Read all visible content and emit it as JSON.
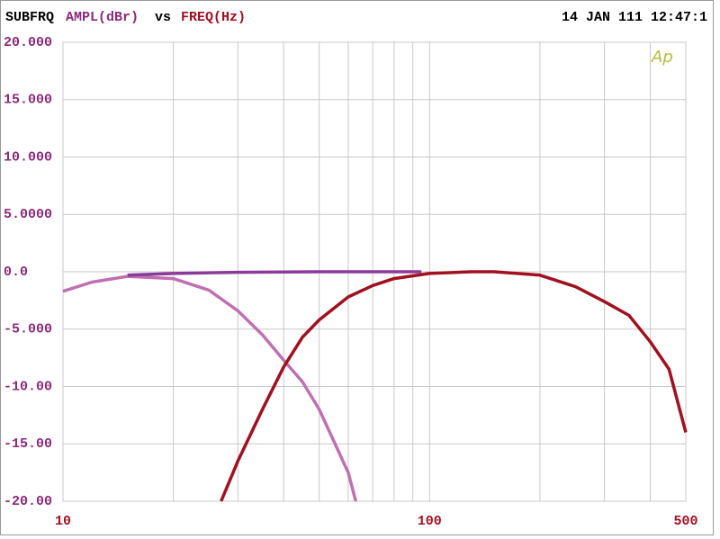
{
  "chart_data": {
    "type": "line",
    "header": {
      "label": "SUBFRQ",
      "y_label": "AMPL(dBr)",
      "vs": "vs",
      "x_label": "FREQ(Hz)",
      "timestamp": "14 JAN 111 12:47:1",
      "logo": "Ap"
    },
    "log_x": true,
    "grid": true,
    "xlim": [
      10,
      500
    ],
    "ylim": [
      -20,
      20
    ],
    "xticks": [
      10,
      100,
      500
    ],
    "minor_xticks": [
      20,
      30,
      40,
      50,
      60,
      70,
      80,
      90,
      200,
      300,
      400
    ],
    "yticks": [
      {
        "value": 20,
        "label": "20.000"
      },
      {
        "value": 15,
        "label": "15.000"
      },
      {
        "value": 10,
        "label": "10.000"
      },
      {
        "value": 5,
        "label": "5.0000"
      },
      {
        "value": 0,
        "label": "0.0"
      },
      {
        "value": -5,
        "label": "-5.000"
      },
      {
        "value": -10,
        "label": "-10.00"
      },
      {
        "value": -15,
        "label": "-15.00"
      },
      {
        "value": -20,
        "label": "-20.00"
      }
    ],
    "series": [
      {
        "color": "#c070b0",
        "x": [
          10,
          12,
          15,
          20,
          25,
          30,
          35,
          40,
          45,
          50,
          60,
          62.9
        ],
        "values": [
          -1.7,
          -0.9,
          -0.4,
          -0.6,
          -1.6,
          -3.4,
          -5.5,
          -7.7,
          -9.6,
          -12,
          -17.5,
          -20
        ]
      },
      {
        "color": "#8a3a9a",
        "x": [
          15,
          20,
          30,
          50,
          95
        ],
        "values": [
          -0.3,
          -0.15,
          -0.05,
          0,
          0
        ]
      },
      {
        "color": "#a01020",
        "x": [
          27,
          30,
          35,
          40,
          45,
          50,
          60,
          70,
          80,
          100,
          130,
          150,
          200,
          250,
          300,
          350,
          400,
          450,
          500
        ],
        "values": [
          -20,
          -16.5,
          -12,
          -8.3,
          -5.7,
          -4.2,
          -2.2,
          -1.2,
          -0.6,
          -0.15,
          0,
          0,
          -0.3,
          -1.3,
          -2.6,
          -3.8,
          -6.1,
          -8.5,
          -14
        ]
      }
    ]
  }
}
